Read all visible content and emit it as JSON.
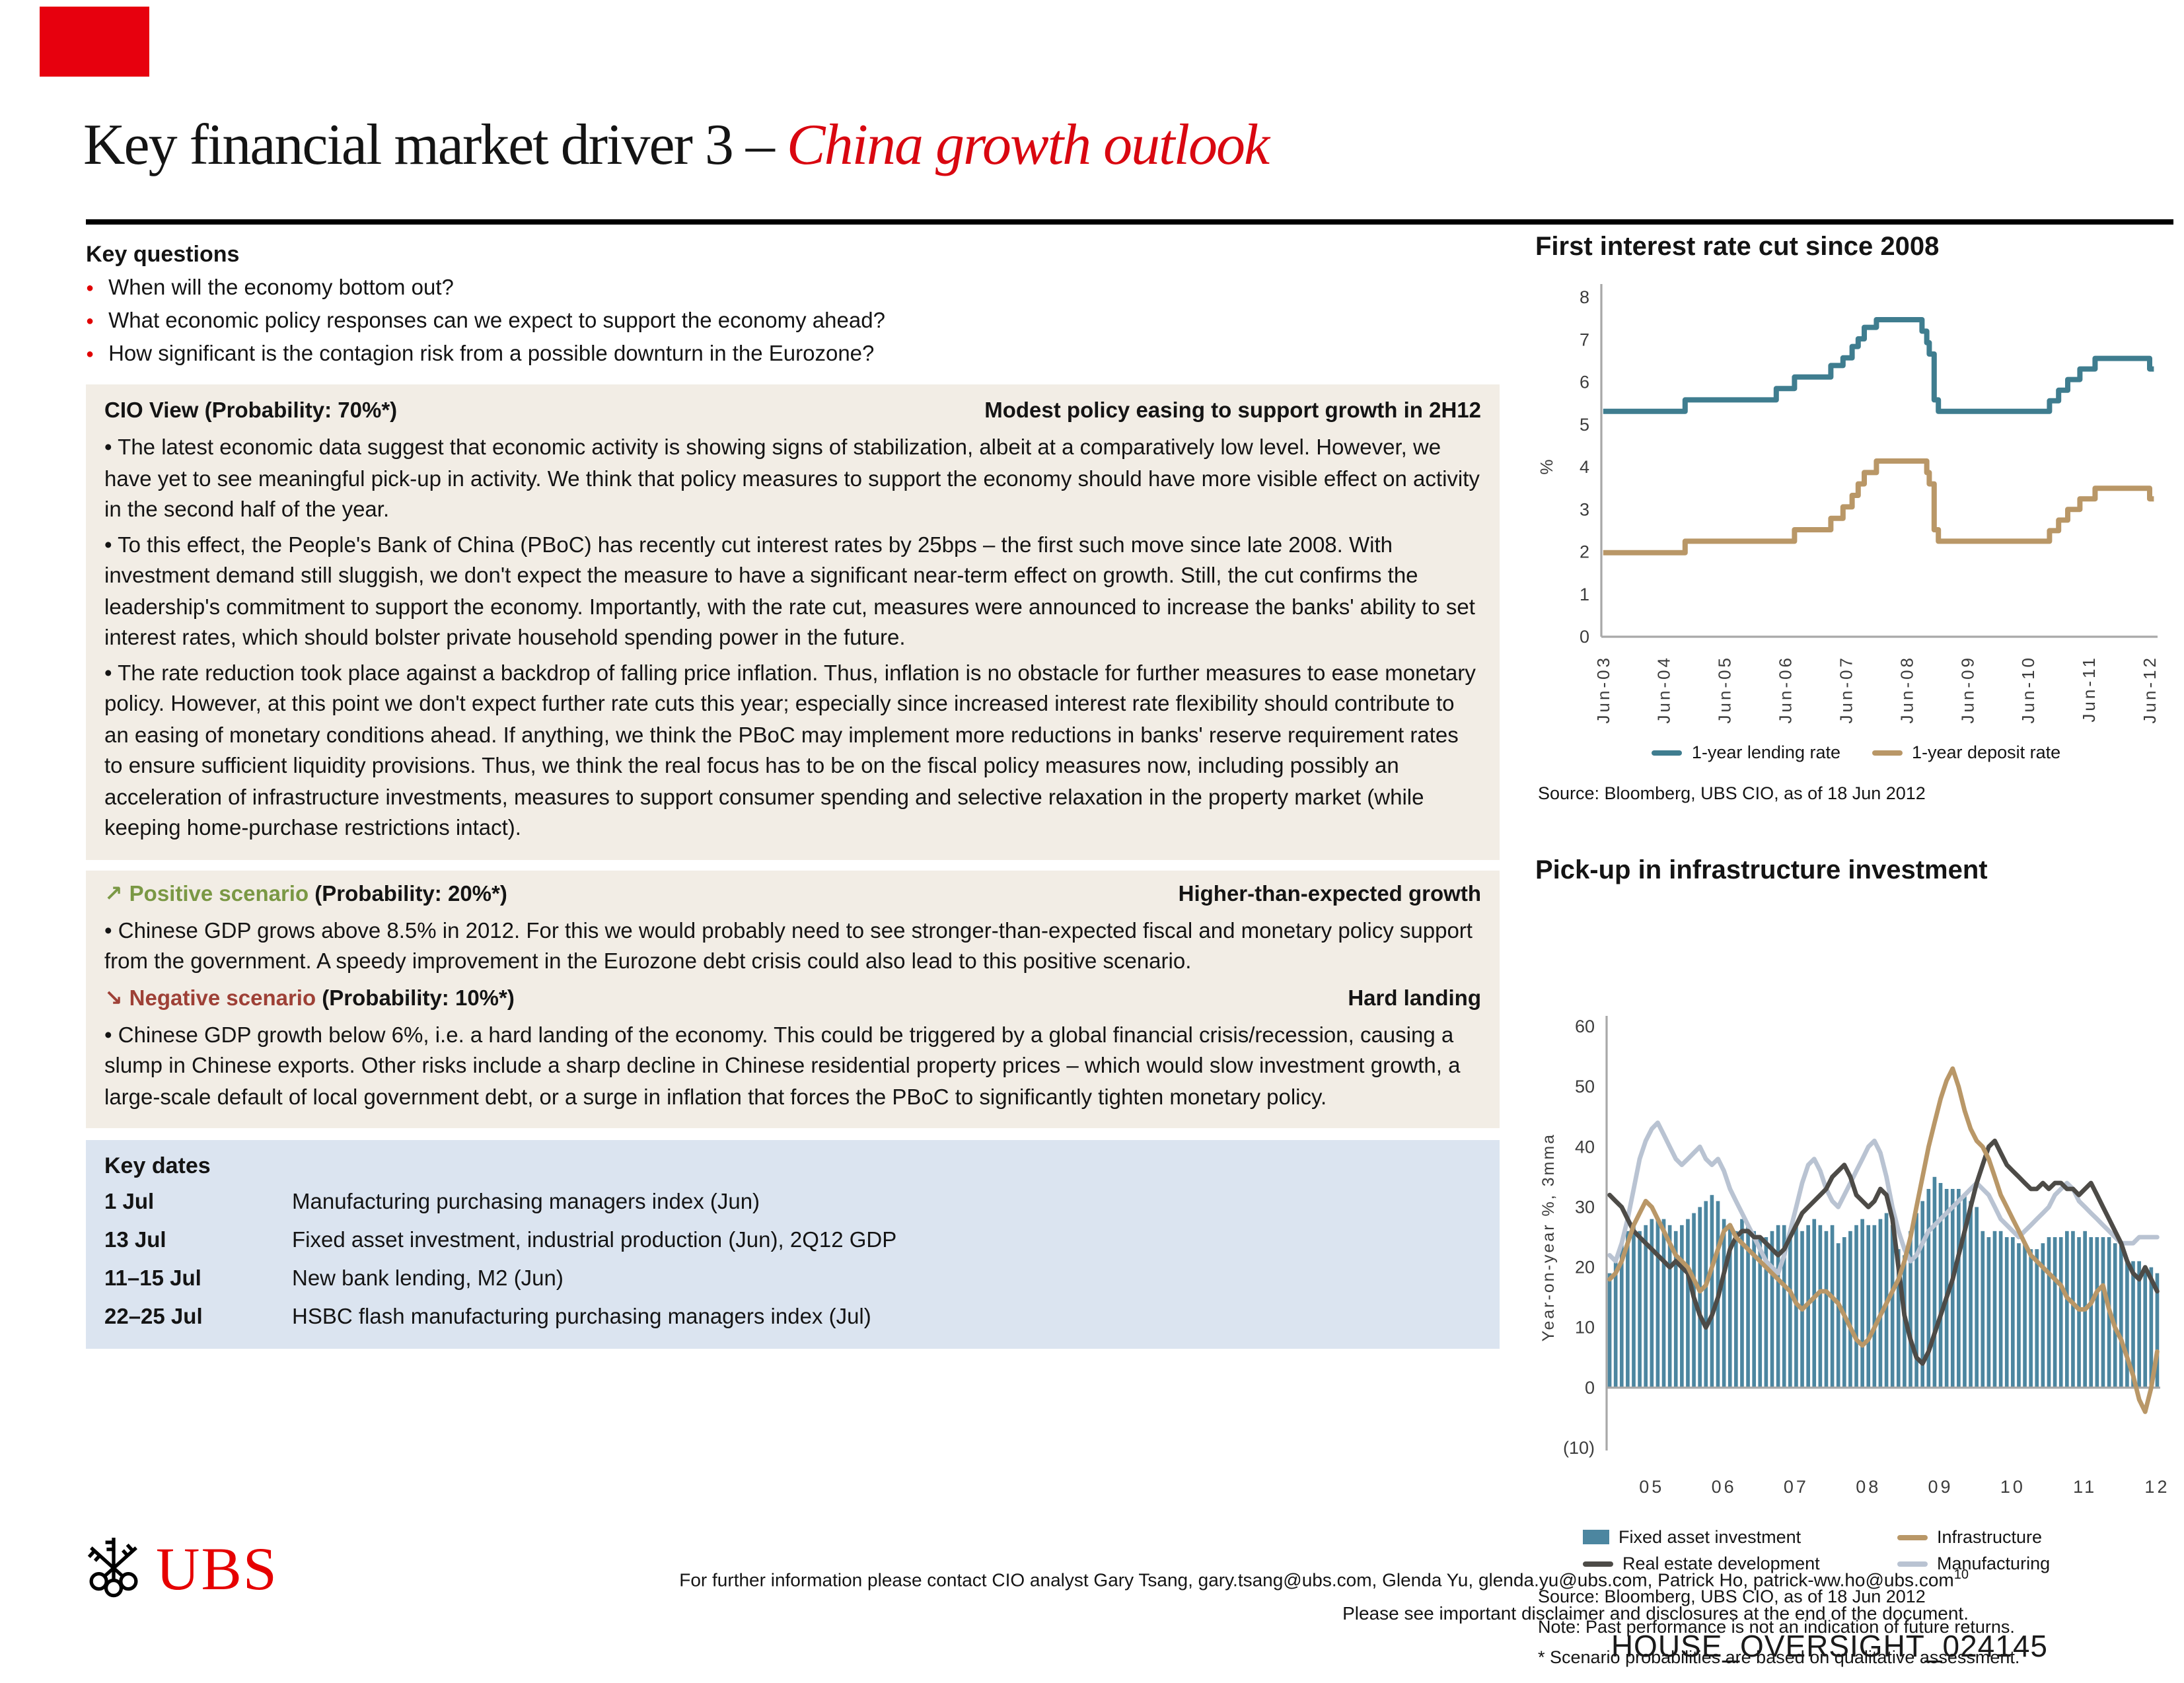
{
  "header": {
    "title_prefix": "Key financial market driver 3 – ",
    "title_emphasis": "China growth outlook"
  },
  "key_questions": {
    "heading": "Key questions",
    "items": [
      "When will the economy bottom out?",
      "What economic policy responses can we expect to support the economy ahead?",
      "How significant is the contagion risk from a possible downturn in the Eurozone?"
    ]
  },
  "cio_view": {
    "heading": "CIO View (Probability: 70%*)",
    "tagline": "Modest policy easing to support growth in 2H12",
    "bullets": [
      "The latest economic data suggest that economic activity is showing signs of stabilization, albeit at a comparatively low level. However, we have yet to see meaningful pick-up in activity. We think that policy measures to support the economy should have more visible effect on activity in the second half of the year.",
      "To this effect, the People's Bank of China (PBoC) has recently cut interest rates by 25bps – the first such move since late 2008. With investment demand still sluggish, we don't expect the measure to have a significant near-term effect on growth. Still, the cut confirms the leadership's commitment to support the economy. Importantly, with the rate cut, measures were announced to increase the banks' ability to set interest rates, which should bolster private household spending power in the future.",
      "The rate reduction took place against a backdrop of falling price inflation. Thus, inflation is no obstacle for further measures to ease monetary policy. However, at this point we don't expect further rate cuts this year; especially since increased interest rate flexibility should contribute to an easing of monetary conditions ahead. If anything, we think the PBoC may implement more reductions in banks' reserve requirement rates to ensure sufficient liquidity provisions. Thus, we think the real focus has to be on the fiscal policy measures now, including possibly an acceleration of infrastructure investments, measures to support consumer spending and selective relaxation in the property market (while keeping home-purchase restrictions intact)."
    ]
  },
  "scenarios": {
    "positive": {
      "arrow": "↗",
      "label": "Positive scenario",
      "probability": " (Probability: 20%*)",
      "tagline": "Higher-than-expected growth",
      "bullets": [
        "Chinese GDP grows above 8.5% in 2012. For this we would probably need to see stronger-than-expected fiscal and monetary policy support from the government. A speedy improvement in the Eurozone debt crisis could also lead to this positive scenario."
      ]
    },
    "negative": {
      "arrow": "↘",
      "label": "Negative scenario",
      "probability": " (Probability: 10%*)",
      "tagline": "Hard landing",
      "bullets": [
        "Chinese GDP growth below 6%, i.e. a hard landing of the economy. This could be triggered by a global financial crisis/recession, causing a slump in Chinese exports. Other risks include a sharp decline in Chinese residential property prices – which would slow investment growth, a large-scale default of local government debt, or a surge in inflation that forces the PBoC to significantly tighten monetary policy."
      ]
    }
  },
  "key_dates": {
    "heading": "Key dates",
    "rows": [
      {
        "date": "1 Jul",
        "event": "Manufacturing purchasing managers index (Jun)"
      },
      {
        "date": "13 Jul",
        "event": "Fixed asset investment, industrial production (Jun), 2Q12 GDP"
      },
      {
        "date": "11–15 Jul",
        "event": "New bank lending, M2 (Jun)"
      },
      {
        "date": "22–25 Jul",
        "event": "HSBC flash manufacturing purchasing managers index (Jul)"
      }
    ]
  },
  "footer": {
    "logo_text": "UBS",
    "contact": "For further information please contact CIO analyst Gary Tsang, gary.tsang@ubs.com, Glenda Yu, glenda.yu@ubs.com, Patrick Ho, patrick-ww.ho@ubs.com",
    "page_number": "10",
    "disclaimer": "Please see important disclaimer and disclosures at the end of the document.",
    "watermark": "HOUSE_OVERSIGHT_024145"
  },
  "colors": {
    "ubs_red": "#e60000",
    "title_red": "#d90710",
    "bullet_red": "#e00000",
    "beige_box": "#f2ede5",
    "blue_box": "#dbe4f0",
    "positive_green": "#7a9844",
    "negative_red": "#9e4036",
    "teal_line": "#3f7d8f",
    "tan_line": "#b99767",
    "bar_blue": "#4c86a0",
    "dark_line": "#4d4b47",
    "light_line": "#b9c3d2"
  },
  "chart_data": [
    {
      "type": "line",
      "title": "First interest rate cut since 2008",
      "ylabel": "%",
      "ylim": [
        0,
        8
      ],
      "yticks": [
        0,
        1,
        2,
        3,
        4,
        5,
        6,
        7,
        8
      ],
      "xlim": [
        2003.42,
        2012.58
      ],
      "xticks": [
        {
          "label": "Jun-03",
          "x": 2003.45
        },
        {
          "label": "Jun-04",
          "x": 2004.45
        },
        {
          "label": "Jun-05",
          "x": 2005.45
        },
        {
          "label": "Jun-06",
          "x": 2006.45
        },
        {
          "label": "Jun-07",
          "x": 2007.45
        },
        {
          "label": "Jun-08",
          "x": 2008.45
        },
        {
          "label": "Jun-09",
          "x": 2009.45
        },
        {
          "label": "Jun-10",
          "x": 2010.45
        },
        {
          "label": "Jun-11",
          "x": 2011.45
        },
        {
          "label": "Jun-12",
          "x": 2012.45
        }
      ],
      "grid": false,
      "legend_position": "bottom",
      "series": [
        {
          "name": "1-year lending rate",
          "type": "line",
          "color": "#3f7d8f",
          "step": true,
          "points": [
            [
              2003.45,
              5.31
            ],
            [
              2004.8,
              5.58
            ],
            [
              2006.3,
              5.85
            ],
            [
              2006.6,
              6.12
            ],
            [
              2007.2,
              6.39
            ],
            [
              2007.4,
              6.57
            ],
            [
              2007.55,
              6.84
            ],
            [
              2007.65,
              7.02
            ],
            [
              2007.75,
              7.29
            ],
            [
              2007.95,
              7.47
            ],
            [
              2008.7,
              7.2
            ],
            [
              2008.78,
              6.93
            ],
            [
              2008.82,
              6.66
            ],
            [
              2008.9,
              5.58
            ],
            [
              2008.97,
              5.31
            ],
            [
              2010.8,
              5.56
            ],
            [
              2010.95,
              5.81
            ],
            [
              2011.1,
              6.06
            ],
            [
              2011.3,
              6.31
            ],
            [
              2011.55,
              6.56
            ],
            [
              2012.45,
              6.31
            ]
          ]
        },
        {
          "name": "1-year deposit rate",
          "type": "line",
          "color": "#b99767",
          "step": true,
          "points": [
            [
              2003.45,
              1.98
            ],
            [
              2004.8,
              2.25
            ],
            [
              2006.6,
              2.52
            ],
            [
              2007.2,
              2.79
            ],
            [
              2007.4,
              3.06
            ],
            [
              2007.55,
              3.33
            ],
            [
              2007.65,
              3.6
            ],
            [
              2007.75,
              3.87
            ],
            [
              2007.95,
              4.14
            ],
            [
              2008.78,
              3.87
            ],
            [
              2008.82,
              3.6
            ],
            [
              2008.9,
              2.52
            ],
            [
              2008.97,
              2.25
            ],
            [
              2010.8,
              2.5
            ],
            [
              2010.95,
              2.75
            ],
            [
              2011.1,
              3.0
            ],
            [
              2011.3,
              3.25
            ],
            [
              2011.55,
              3.5
            ],
            [
              2012.45,
              3.25
            ]
          ]
        }
      ],
      "source": "Source: Bloomberg, UBS CIO, as of 18 Jun 2012"
    },
    {
      "type": "bar+line",
      "title": "Pick-up in infrastructure investment",
      "ylabel": "Year-on-year %, 3mma",
      "ylim": [
        -10,
        60
      ],
      "yticks": [
        60,
        50,
        40,
        30,
        20,
        10,
        0,
        -10
      ],
      "x_start": "2004-11",
      "xticks": [
        "05",
        "06",
        "07",
        "08",
        "09",
        "10",
        "11",
        "12"
      ],
      "grid": false,
      "legend_position": "bottom",
      "series": [
        {
          "name": "Fixed asset investment",
          "type": "bar",
          "color": "#4c86a0",
          "values": [
            19,
            21,
            24,
            26,
            27,
            26,
            27,
            28,
            28,
            28,
            27,
            26,
            27,
            28,
            29,
            30,
            31,
            32,
            31,
            28,
            27,
            26,
            28,
            27,
            26,
            25,
            25,
            26,
            27,
            27,
            26,
            27,
            26,
            27,
            28,
            27,
            26,
            27,
            24,
            25,
            26,
            27,
            28,
            27,
            27,
            28,
            29,
            27,
            23,
            22,
            26,
            29,
            31,
            33,
            35,
            34,
            33,
            33,
            33,
            32,
            31,
            30,
            26,
            25,
            26,
            26,
            25,
            25,
            24,
            24,
            23,
            23,
            24,
            25,
            25,
            25,
            26,
            26,
            25,
            26,
            25,
            25,
            25,
            25,
            24,
            24,
            21,
            21,
            21,
            20,
            20,
            19
          ]
        },
        {
          "name": "Infrastructure",
          "type": "line",
          "color": "#b99767",
          "values": [
            18,
            19,
            21,
            24,
            27,
            29,
            31,
            30,
            28,
            26,
            24,
            22,
            21,
            20,
            18,
            16,
            17,
            20,
            23,
            26,
            27,
            25,
            24,
            23,
            22,
            21,
            20,
            19,
            18,
            17,
            16,
            14,
            13,
            14,
            15,
            16,
            16,
            15,
            14,
            12,
            10,
            8,
            7,
            8,
            10,
            12,
            14,
            16,
            18,
            21,
            25,
            30,
            35,
            40,
            44,
            48,
            51,
            53,
            50,
            46,
            43,
            41,
            40,
            38,
            35,
            32,
            30,
            28,
            26,
            24,
            22,
            21,
            20,
            19,
            18,
            17,
            15,
            14,
            13,
            13,
            14,
            16,
            17,
            13,
            10,
            8,
            5,
            2,
            -2,
            -4,
            0,
            6
          ]
        },
        {
          "name": "Real estate development",
          "type": "line",
          "color": "#4d4b47",
          "values": [
            32,
            31,
            30,
            28,
            26,
            25,
            24,
            23,
            22,
            21,
            20,
            21,
            20,
            19,
            15,
            12,
            10,
            12,
            15,
            19,
            23,
            25,
            26,
            26,
            25,
            25,
            24,
            23,
            22,
            23,
            25,
            27,
            29,
            30,
            31,
            32,
            33,
            35,
            36,
            37,
            35,
            32,
            31,
            30,
            31,
            33,
            32,
            28,
            20,
            12,
            8,
            5,
            4,
            6,
            9,
            12,
            15,
            18,
            22,
            26,
            30,
            34,
            37,
            40,
            41,
            39,
            37,
            36,
            35,
            34,
            33,
            33,
            34,
            33,
            34,
            34,
            33,
            33,
            32,
            33,
            34,
            32,
            30,
            28,
            26,
            24,
            21,
            19,
            18,
            20,
            18,
            16
          ]
        },
        {
          "name": "Manufacturing",
          "type": "line",
          "color": "#b9c3d2",
          "values": [
            22,
            21,
            24,
            28,
            33,
            38,
            41,
            43,
            44,
            42,
            40,
            38,
            37,
            38,
            39,
            40,
            38,
            37,
            38,
            36,
            33,
            31,
            29,
            27,
            25,
            23,
            21,
            20,
            19,
            22,
            26,
            30,
            34,
            37,
            38,
            36,
            33,
            31,
            30,
            32,
            34,
            36,
            38,
            40,
            41,
            39,
            35,
            30,
            26,
            23,
            21,
            22,
            24,
            26,
            27,
            28,
            29,
            30,
            31,
            32,
            33,
            34,
            33,
            32,
            30,
            28,
            27,
            26,
            25,
            26,
            27,
            28,
            29,
            30,
            32,
            33,
            34,
            33,
            31,
            30,
            29,
            28,
            27,
            26,
            25,
            24,
            24,
            24,
            25,
            25,
            25,
            25
          ]
        }
      ],
      "source": "Source: Bloomberg, UBS CIO, as of 18 Jun 2012",
      "note": "Note: Past performance is not an indication of future returns.",
      "footnote": "* Scenario probabilities are based on qualitative assessment."
    }
  ]
}
